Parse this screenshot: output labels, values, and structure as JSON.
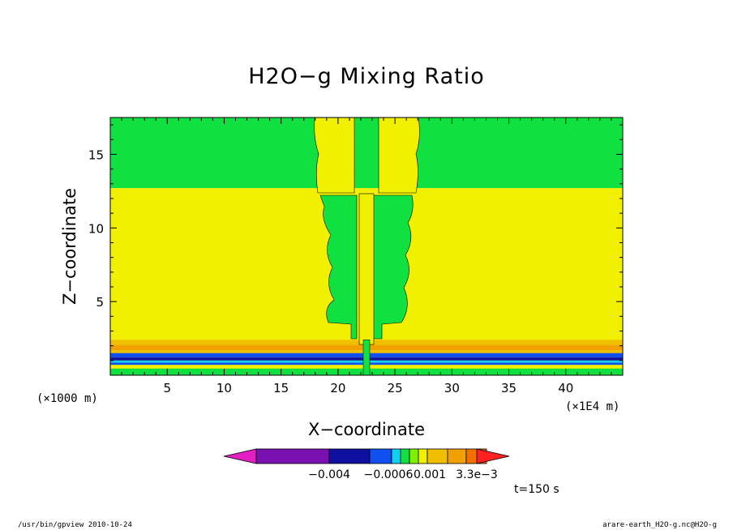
{
  "chart_data": {
    "type": "heatmap",
    "title": "H2O−g Mixing Ratio",
    "xlabel": "X−coordinate",
    "ylabel": "Z−coordinate",
    "x_unit": "(×1E4 m)",
    "y_unit": "(×1000 m)",
    "xlim": [
      0,
      45
    ],
    "ylim": [
      0,
      17.5
    ],
    "x_ticks": [
      5,
      10,
      15,
      20,
      25,
      30,
      35,
      40
    ],
    "y_ticks": [
      5,
      10,
      15
    ],
    "colorbar": {
      "levels": [
        "-0.006",
        "-0.004",
        "-0.001",
        "-0.0006",
        "-0.0003",
        "0",
        "0.0003",
        "0.0006",
        "0.001",
        "0.002",
        "3.3e-3"
      ],
      "tick_labels": [
        "−0.004",
        "−0.0006",
        "0.001",
        "3.3e−3"
      ],
      "colors": [
        "#e020c0",
        "#7a10b0",
        "#1010a0",
        "#1050f0",
        "#10d0f0",
        "#10e040",
        "#80f000",
        "#f0f000",
        "#f0c000",
        "#f0a000",
        "#f07000",
        "#ff2020"
      ]
    },
    "regions_note": "",
    "fields": [
      {
        "name": "upper band",
        "z_range": [
          12.7,
          17.5
        ],
        "value_color": "#10e040"
      },
      {
        "name": "middle band",
        "z_range": [
          2.4,
          12.7
        ],
        "value_color": "#f0f000"
      },
      {
        "name": "surface layers",
        "z_range": [
          0,
          2.4
        ],
        "value_color": "#f0c000"
      }
    ]
  },
  "colors": {
    "green": "#10e040",
    "yellow": "#f0f000",
    "orange": "#f0c000",
    "dark_orange": "#f0a000",
    "blue": "#1050f0",
    "navy": "#1010a0",
    "cyan": "#10d0f0"
  },
  "annotations": {
    "time": "t=150 s"
  },
  "footer": {
    "left": "/usr/bin/gpview   2010-10-24",
    "right": "arare-earth_H2O-g.nc@H2O-g"
  }
}
